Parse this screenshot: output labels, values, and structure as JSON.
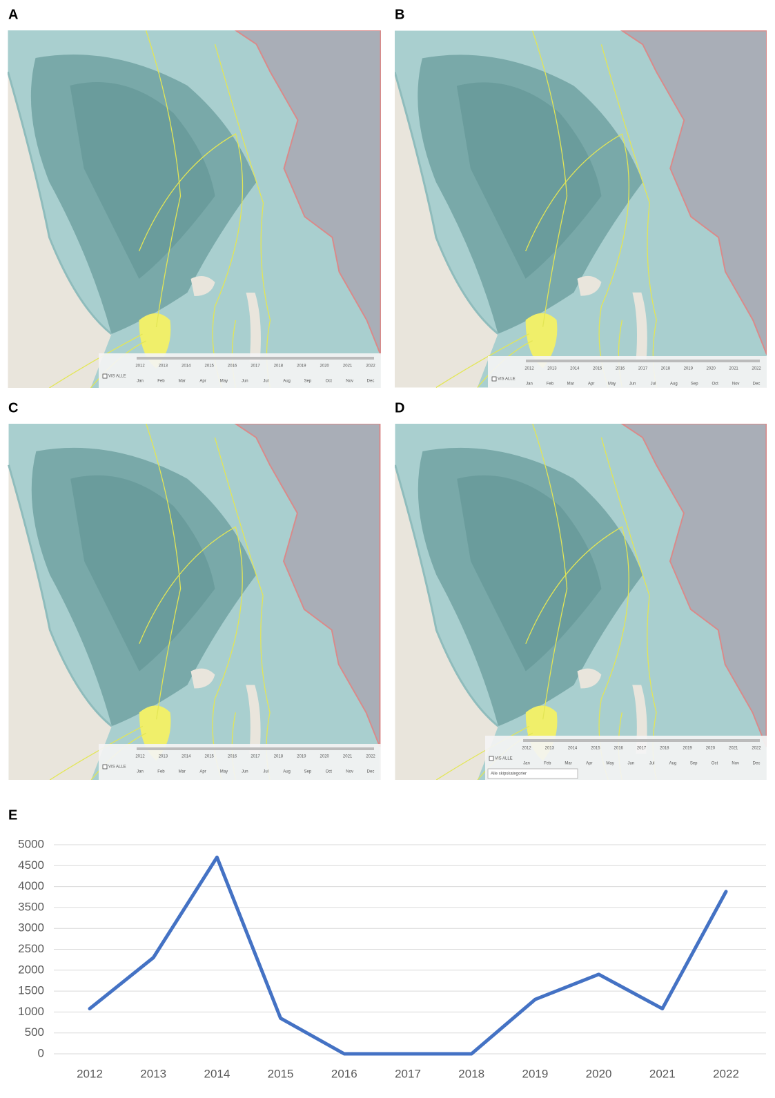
{
  "panels": {
    "labels": [
      "A",
      "B",
      "C",
      "D",
      "E"
    ]
  },
  "timeline": {
    "years": [
      "2012",
      "2013",
      "2014",
      "2015",
      "2016",
      "2017",
      "2018",
      "2019",
      "2020",
      "2021",
      "2022"
    ],
    "months": [
      "Jan",
      "Feb",
      "Mar",
      "Apr",
      "May",
      "Jun",
      "Jul",
      "Aug",
      "Sep",
      "Oct",
      "Nov",
      "Dec"
    ],
    "show_all": "VIS ALLE",
    "category_select": "Alle skipskategorier"
  },
  "chart_data": {
    "type": "line",
    "categories": [
      "2012",
      "2013",
      "2014",
      "2015",
      "2016",
      "2017",
      "2018",
      "2019",
      "2020",
      "2021",
      "2022"
    ],
    "values": [
      1080,
      2300,
      4700,
      850,
      0,
      0,
      0,
      1300,
      1900,
      1080,
      3880
    ],
    "color": "#4472c4",
    "ylim": [
      0,
      5000
    ],
    "yticks": [
      0,
      500,
      1000,
      1500,
      2000,
      2500,
      3000,
      3500,
      4000,
      4500,
      5000
    ],
    "grid": true
  }
}
